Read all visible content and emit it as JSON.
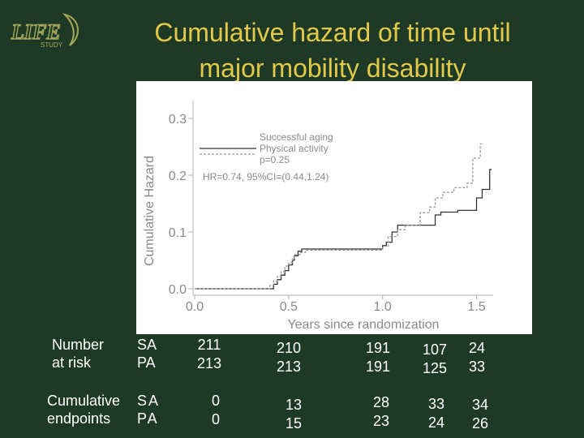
{
  "title_line1": "Cumulative hazard of time until",
  "title_line2": "major mobility disability",
  "logo_text": "LIFE",
  "logo_sub": "STUDY",
  "colors": {
    "background": "#1e3a26",
    "title": "#e2c94a",
    "panel": "#ffffff",
    "text": "#ffffff"
  },
  "chart_data": {
    "type": "line",
    "ylabel": "Cumulative Hazard",
    "xlabel": "Years since randomization",
    "xlim": [
      0.0,
      1.6
    ],
    "ylim": [
      0.0,
      0.32
    ],
    "xticks": [
      "0.0",
      "0.5",
      "1.0",
      "1.5"
    ],
    "yticks": [
      "0.0",
      "0.1",
      "0.2",
      "0.3"
    ],
    "legend": {
      "position": "top-center",
      "entries": [
        "Successful aging",
        "Physical activity"
      ]
    },
    "annotations": [
      "p=0.25",
      "HR=0.74, 95%CI=(0.44,1.24)"
    ],
    "series": [
      {
        "name": "Successful aging",
        "style": "solid",
        "x": [
          0.0,
          0.42,
          0.44,
          0.46,
          0.48,
          0.5,
          0.52,
          0.53,
          0.55,
          0.57,
          1.0,
          1.02,
          1.05,
          1.08,
          1.25,
          1.28,
          1.31,
          1.35,
          1.4,
          1.47,
          1.5,
          1.53,
          1.55,
          1.57
        ],
        "y": [
          0.0,
          0.008,
          0.016,
          0.024,
          0.032,
          0.042,
          0.05,
          0.058,
          0.066,
          0.07,
          0.076,
          0.082,
          0.1,
          0.112,
          0.112,
          0.13,
          0.135,
          0.135,
          0.138,
          0.138,
          0.16,
          0.175,
          0.175,
          0.21
        ]
      },
      {
        "name": "Physical activity",
        "style": "dashed",
        "x": [
          0.0,
          0.4,
          0.42,
          0.44,
          0.46,
          0.48,
          0.5,
          0.52,
          0.53,
          0.56,
          0.59,
          0.98,
          1.0,
          1.03,
          1.08,
          1.12,
          1.2,
          1.25,
          1.28,
          1.32,
          1.38,
          1.45,
          1.48,
          1.52
        ],
        "y": [
          0.0,
          0.006,
          0.014,
          0.022,
          0.03,
          0.04,
          0.046,
          0.054,
          0.06,
          0.064,
          0.068,
          0.068,
          0.075,
          0.092,
          0.104,
          0.112,
          0.134,
          0.144,
          0.16,
          0.17,
          0.178,
          0.186,
          0.23,
          0.255
        ]
      }
    ]
  },
  "risk_table": {
    "number_label_1": "Number",
    "number_label_2": "at risk",
    "endpoint_label_1": "Cumulative",
    "endpoint_label_2": "endpoints",
    "group_sa": "SA",
    "group_pa": "PA",
    "at_risk_sa": [
      "211",
      "210",
      "191",
      "107",
      "24"
    ],
    "at_risk_pa": [
      "213",
      "213",
      "191",
      "125",
      "33"
    ],
    "endpoints_sa": [
      "0",
      "13",
      "28",
      "33",
      "34"
    ],
    "endpoints_pa": [
      "0",
      "15",
      "23",
      "24",
      "26"
    ]
  }
}
